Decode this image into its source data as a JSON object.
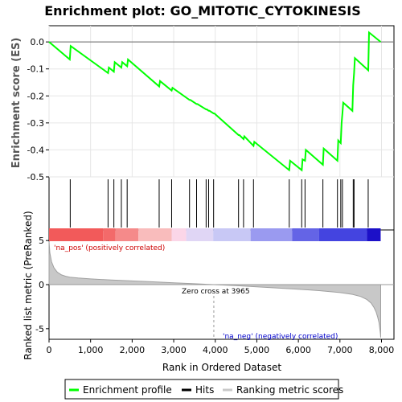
{
  "chart_data": {
    "type": "line",
    "title": "Enrichment plot: GO_MITOTIC_CYTOKINESIS",
    "top_panel": {
      "ylabel": "Enrichment score (ES)",
      "yticks": [
        "0.0",
        "-0.1",
        "-0.2",
        "-0.3",
        "-0.4",
        "-0.5"
      ],
      "ylim": [
        -0.5,
        0.06
      ],
      "series": [
        {
          "name": "Enrichment profile",
          "color": "#00ff00",
          "x": [
            0,
            500,
            520,
            1420,
            1440,
            1560,
            1580,
            1740,
            1760,
            1880,
            1900,
            2650,
            2670,
            2950,
            2970,
            3380,
            3400,
            3550,
            3570,
            3780,
            3800,
            3840,
            3860,
            3960,
            3980,
            4560,
            4580,
            4680,
            4700,
            4920,
            4940,
            5780,
            5800,
            6080,
            6100,
            6160,
            6180,
            6590,
            6610,
            6940,
            6960,
            7020,
            7040,
            7060,
            7080,
            7300,
            7320,
            7340,
            7360,
            7680,
            7700,
            7980
          ],
          "y": [
            0.0,
            -0.065,
            -0.015,
            -0.115,
            -0.095,
            -0.11,
            -0.075,
            -0.095,
            -0.075,
            -0.09,
            -0.065,
            -0.165,
            -0.145,
            -0.18,
            -0.17,
            -0.215,
            -0.215,
            -0.23,
            -0.23,
            -0.25,
            -0.25,
            -0.255,
            -0.255,
            -0.265,
            -0.265,
            -0.345,
            -0.345,
            -0.36,
            -0.35,
            -0.385,
            -0.37,
            -0.475,
            -0.44,
            -0.475,
            -0.435,
            -0.44,
            -0.4,
            -0.455,
            -0.395,
            -0.44,
            -0.365,
            -0.375,
            -0.3,
            -0.265,
            -0.225,
            -0.255,
            -0.16,
            -0.115,
            -0.06,
            -0.105,
            0.035,
            0.0
          ]
        }
      ]
    },
    "hits": [
      510,
      1420,
      1560,
      1740,
      1880,
      2650,
      2950,
      3380,
      3550,
      3780,
      3840,
      3960,
      4560,
      4680,
      4920,
      5780,
      6080,
      6160,
      6590,
      6940,
      7020,
      7060,
      7320,
      7340,
      7680
    ],
    "ranking_bar": {
      "colors": [
        "#f25a5a",
        "#f36a6a",
        "#f58a8a",
        "#f9bcbc",
        "#fbd6e8",
        "#e0d6f5",
        "#c8c8f5",
        "#9a9af0",
        "#6464e6",
        "#4444e0",
        "#1c10c8"
      ],
      "bounds": [
        0,
        1300,
        1600,
        2150,
        2950,
        3300,
        3950,
        4850,
        5850,
        6500,
        7650,
        7980
      ]
    },
    "bottom_panel": {
      "ylabel": "Ranked list metric (PreRanked)",
      "yticks": [
        "5",
        "0",
        "-5"
      ],
      "ylim": [
        -6.2,
        6.2
      ],
      "metric_curve": {
        "x": [
          0,
          20,
          60,
          120,
          200,
          300,
          400,
          500,
          700,
          1000,
          1500,
          2000,
          2500,
          3000,
          3500,
          3965,
          4500,
          5000,
          5500,
          6000,
          6500,
          7000,
          7300,
          7500,
          7650,
          7750,
          7820,
          7870,
          7910,
          7940,
          7960,
          7975,
          7980
        ],
        "y": [
          4.9,
          3.6,
          2.6,
          1.9,
          1.4,
          1.1,
          0.95,
          0.85,
          0.75,
          0.65,
          0.52,
          0.42,
          0.32,
          0.21,
          0.1,
          0.0,
          -0.12,
          -0.25,
          -0.38,
          -0.52,
          -0.68,
          -0.9,
          -1.1,
          -1.35,
          -1.7,
          -2.1,
          -2.6,
          -3.1,
          -3.7,
          -4.3,
          -5.0,
          -5.6,
          -6.0
        ]
      },
      "zero_cross_text": "Zero cross at 3965",
      "zero_cross": 3965,
      "pos_label": "'na_pos' (positively correlated)",
      "neg_label": "'na_neg' (negatively correlated)",
      "pos_color": "#cc0000",
      "neg_color": "#0000cc"
    },
    "xaxis": {
      "label": "Rank in Ordered Dataset",
      "ticks": [
        0,
        1000,
        2000,
        3000,
        4000,
        5000,
        6000,
        7000,
        8000
      ],
      "tick_labels": [
        "0",
        "1,000",
        "2,000",
        "3,000",
        "4,000",
        "5,000",
        "6,000",
        "7,000",
        "8,000"
      ],
      "range": [
        0,
        8300
      ]
    },
    "legend": {
      "items": [
        {
          "label": "Enrichment profile",
          "color": "#00ff00"
        },
        {
          "label": "Hits",
          "color": "#000000"
        },
        {
          "label": "Ranking metric scores",
          "color": "#c8c8c8"
        }
      ],
      "placement": "bottom"
    }
  }
}
